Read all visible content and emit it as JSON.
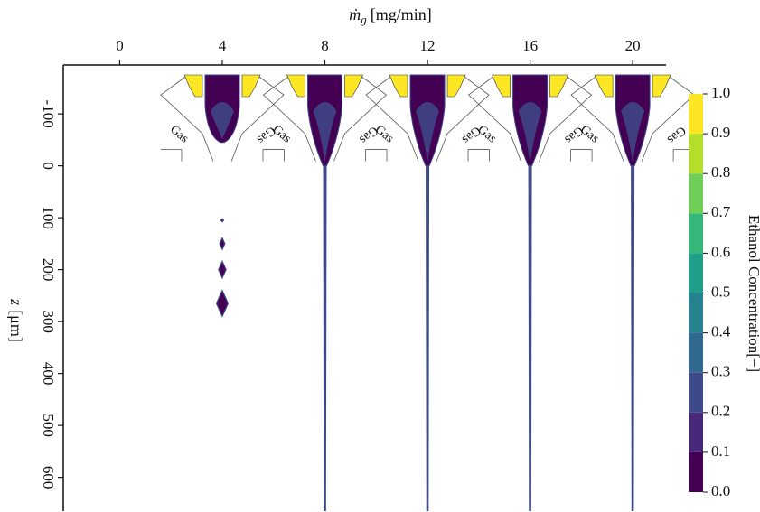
{
  "chart_data": {
    "type": "jet",
    "xlabel": {
      "symbol": "ṁ",
      "subscript": "g",
      "unit": "[mg/min]"
    },
    "ylabel": {
      "symbol": "z",
      "unit": "[μm]"
    },
    "xlim": [
      -2.2,
      21.3
    ],
    "xticks": [
      0,
      4,
      8,
      12,
      16,
      20
    ],
    "ylim": [
      -175,
      665
    ],
    "yticks": [
      -100,
      0,
      100,
      200,
      300,
      400,
      500,
      600
    ],
    "cases": [
      4,
      8,
      12,
      16,
      20
    ],
    "nozzle_label": "Gas",
    "droplets": {
      "x": [
        4,
        4,
        4,
        4
      ],
      "z": [
        105,
        150,
        200,
        265
      ],
      "length": [
        6,
        22,
        32,
        50
      ]
    },
    "colorbar": {
      "label": "Ethanol Concentration[−]",
      "lim": [
        0,
        1
      ],
      "ticks": [
        {
          "value": 0,
          "label": "0.0"
        },
        {
          "value": 0.1,
          "label": "0.1"
        },
        {
          "value": 0.2,
          "label": "0.2"
        },
        {
          "value": 0.3,
          "label": "0.3"
        },
        {
          "value": 0.4,
          "label": "0.4"
        },
        {
          "value": 0.5,
          "label": "0.5"
        },
        {
          "value": 0.6,
          "label": "0.6"
        },
        {
          "value": 0.7,
          "label": "0.7"
        },
        {
          "value": 0.8,
          "label": "0.8"
        },
        {
          "value": 0.9,
          "label": "0.9"
        },
        {
          "value": 1,
          "label": "1.0"
        }
      ],
      "colors": [
        "#440154",
        "#482878",
        "#3e4989",
        "#31688e",
        "#26828e",
        "#1f9e89",
        "#35b779",
        "#6ece58",
        "#b5de2b",
        "#fde725"
      ]
    }
  }
}
